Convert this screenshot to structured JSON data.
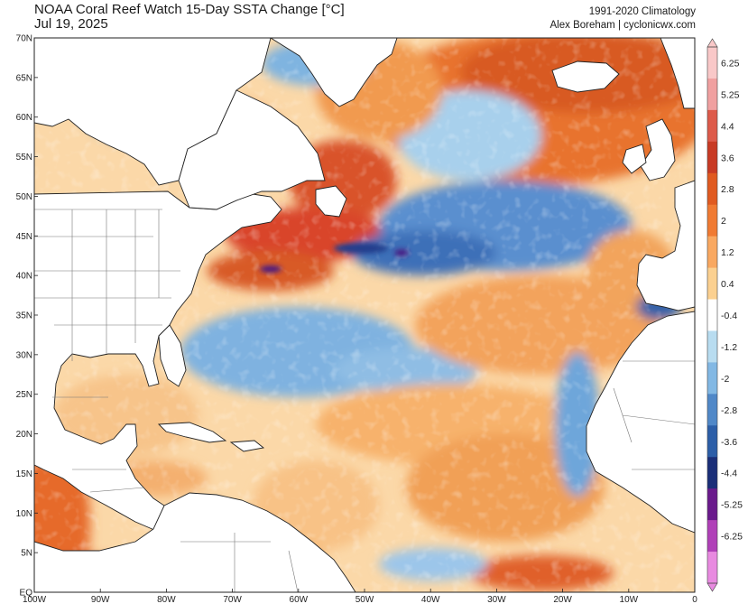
{
  "header": {
    "title": "NOAA Coral Reef Watch 15-Day SSTA Change [°C]",
    "date": "Jul 19, 2025",
    "climatology": "1991-2020 Climatology",
    "credit": "Alex Boreham | cyclonicwx.com"
  },
  "map": {
    "lat_labels": [
      "70N",
      "65N",
      "60N",
      "55N",
      "50N",
      "45N",
      "40N",
      "35N",
      "30N",
      "25N",
      "20N",
      "15N",
      "10N",
      "5N",
      "EQ"
    ],
    "lon_labels": [
      "100W",
      "90W",
      "80W",
      "70W",
      "60W",
      "50W",
      "40W",
      "30W",
      "20W",
      "10W",
      "0"
    ],
    "lat_range": [
      0,
      70
    ],
    "lon_range": [
      -100,
      0
    ]
  },
  "colorbar": {
    "labels": [
      "6.25",
      "5.25",
      "4.4",
      "3.6",
      "2.8",
      "2",
      "1.2",
      "0.4",
      "-0.4",
      "-1.2",
      "-2",
      "-2.8",
      "-3.6",
      "-4.4",
      "-5.25",
      "-6.25"
    ],
    "colors": [
      "#f9c8c8",
      "#f0a0a0",
      "#dd5a4a",
      "#c83a24",
      "#e05a20",
      "#f07a32",
      "#f9a860",
      "#fbd090",
      "#ffffff",
      "#b8dcf0",
      "#82b8e4",
      "#5088c8",
      "#2c5ea8",
      "#1a2e78",
      "#6a1a8c",
      "#b040b8",
      "#e88ae0"
    ]
  },
  "legend_colors": {
    "land": "#ffffff",
    "coast": "#222222",
    "warm": "#f07a32",
    "cool": "#5e9bd6"
  }
}
